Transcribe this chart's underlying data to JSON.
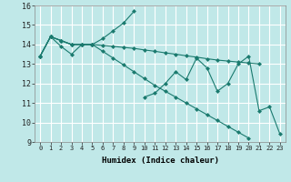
{
  "xlabel": "Humidex (Indice chaleur)",
  "bg_color": "#c0e8e8",
  "grid_color": "#ffffff",
  "line_color": "#1a7a6e",
  "marker_color": "#1a7a6e",
  "xlim": [
    -0.5,
    23.5
  ],
  "ylim": [
    9,
    16
  ],
  "xticks": [
    0,
    1,
    2,
    3,
    4,
    5,
    6,
    7,
    8,
    9,
    10,
    11,
    12,
    13,
    14,
    15,
    16,
    17,
    18,
    19,
    20,
    21,
    22,
    23
  ],
  "yticks": [
    9,
    10,
    11,
    12,
    13,
    14,
    15,
    16
  ],
  "x": [
    0,
    1,
    2,
    3,
    4,
    5,
    6,
    7,
    8,
    9,
    10,
    11,
    12,
    13,
    14,
    15,
    16,
    17,
    18,
    19,
    20,
    21,
    22,
    23
  ],
  "series1": [
    13.4,
    14.4,
    14.2,
    14.0,
    14.0,
    14.0,
    14.3,
    14.7,
    15.1,
    15.7,
    null,
    null,
    null,
    null,
    null,
    null,
    null,
    null,
    null,
    null,
    null,
    null,
    null,
    null
  ],
  "series2": [
    13.4,
    14.4,
    14.2,
    14.0,
    14.0,
    14.0,
    13.95,
    13.9,
    13.85,
    13.8,
    13.72,
    13.65,
    13.57,
    13.5,
    13.42,
    13.35,
    13.27,
    13.2,
    13.15,
    13.1,
    13.05,
    13.0,
    null,
    null
  ],
  "series3": [
    13.4,
    14.4,
    13.9,
    13.5,
    14.0,
    14.0,
    null,
    null,
    null,
    null,
    11.3,
    11.5,
    12.0,
    12.6,
    12.2,
    13.3,
    12.8,
    11.6,
    12.0,
    13.0,
    13.4,
    10.6,
    10.8,
    9.4
  ],
  "series4": [
    13.4,
    14.4,
    14.2,
    14.0,
    14.0,
    14.0,
    13.65,
    13.3,
    12.95,
    12.6,
    12.25,
    11.9,
    11.6,
    11.3,
    11.0,
    10.7,
    10.4,
    10.1,
    9.8,
    9.5,
    9.2,
    null,
    null,
    null
  ]
}
